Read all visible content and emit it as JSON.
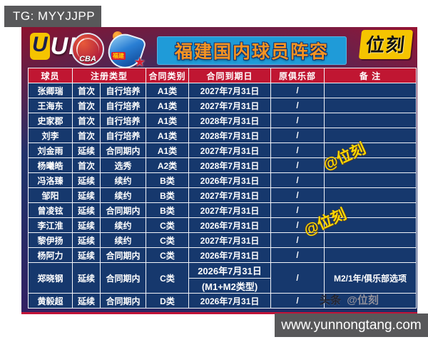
{
  "page": {
    "tg_badge": "TG: MYYJJPP",
    "site_badge": "www.yunnongtang.com"
  },
  "banner": {
    "uuk_logo_u1": "U",
    "uuk_logo_u2": "U",
    "uuk_logo_k": "K",
    "cba_logo": "CBA",
    "fujian_logo_label": "福建",
    "fujian_star": "★",
    "title": "福建国内球员阵容",
    "brand": "位刻"
  },
  "watermarks": {
    "handle": "@位刻",
    "toutiao_prefix": "头条",
    "toutiao_handle": "@位刻"
  },
  "colors": {
    "header_red": "#c01632",
    "row_blue": "#16386d",
    "title_blue": "#1f9bd8",
    "title_orange": "#f59422",
    "brand_yellow": "#f5c400",
    "badge_gray": "#58585a",
    "watermark_yellow": "#ffd800"
  },
  "table": {
    "headers": {
      "player": "球员",
      "reg_type": "注册类型",
      "contract_cat": "合同类别",
      "contract_end": "合同到期日",
      "orig_club": "原俱乐部",
      "note": "备 注"
    },
    "rows": [
      {
        "name": "张卿瑞",
        "reg": "首次",
        "mode": "自行培养",
        "cat": "A1类",
        "date": "2027年7月31日",
        "club": "/",
        "note": ""
      },
      {
        "name": "王海东",
        "reg": "首次",
        "mode": "自行培养",
        "cat": "A1类",
        "date": "2027年7月31日",
        "club": "/",
        "note": ""
      },
      {
        "name": "史家郡",
        "reg": "首次",
        "mode": "自行培养",
        "cat": "A1类",
        "date": "2028年7月31日",
        "club": "/",
        "note": ""
      },
      {
        "name": "刘李",
        "reg": "首次",
        "mode": "自行培养",
        "cat": "A1类",
        "date": "2028年7月31日",
        "club": "/",
        "note": ""
      },
      {
        "name": "刘金雨",
        "reg": "延续",
        "mode": "合同期内",
        "cat": "A1类",
        "date": "2027年7月31日",
        "club": "/",
        "note": ""
      },
      {
        "name": "杨曦皓",
        "reg": "首次",
        "mode": "选秀",
        "cat": "A2类",
        "date": "2028年7月31日",
        "club": "/",
        "note": ""
      },
      {
        "name": "冯洛臻",
        "reg": "延续",
        "mode": "续约",
        "cat": "B类",
        "date": "2026年7月31日",
        "club": "/",
        "note": ""
      },
      {
        "name": "邹阳",
        "reg": "延续",
        "mode": "续约",
        "cat": "B类",
        "date": "2027年7月31日",
        "club": "/",
        "note": ""
      },
      {
        "name": "曾凌铉",
        "reg": "延续",
        "mode": "合同期内",
        "cat": "B类",
        "date": "2027年7月31日",
        "club": "/",
        "note": ""
      },
      {
        "name": "李江淮",
        "reg": "延续",
        "mode": "续约",
        "cat": "C类",
        "date": "2026年7月31日",
        "club": "/",
        "note": ""
      },
      {
        "name": "黎伊扬",
        "reg": "延续",
        "mode": "续约",
        "cat": "C类",
        "date": "2027年7月31日",
        "club": "/",
        "note": ""
      },
      {
        "name": "杨阿力",
        "reg": "延续",
        "mode": "合同期内",
        "cat": "C类",
        "date": "2026年7月31日",
        "club": "/",
        "note": ""
      },
      {
        "name": "郑晓钢",
        "reg": "延续",
        "mode": "合同期内",
        "cat": "C类",
        "date": "2026年7月31日",
        "date2": "(M1+M2类型)",
        "club": "/",
        "note": "M2/1年/俱乐部选项"
      },
      {
        "name": "黄毅超",
        "reg": "延续",
        "mode": "合同期内",
        "cat": "D类",
        "date": "2026年7月31日",
        "club": "/",
        "note": ""
      }
    ]
  }
}
